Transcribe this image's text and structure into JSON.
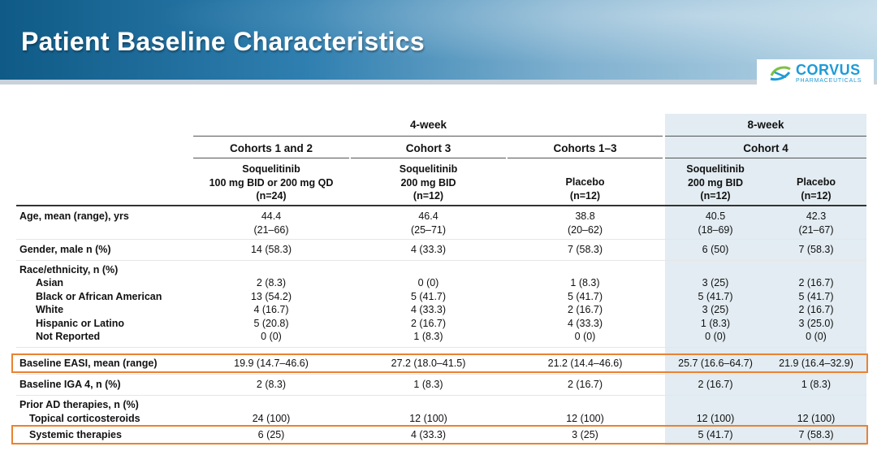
{
  "title": "Patient Baseline Characteristics",
  "logo": {
    "name": "CORVUS",
    "sub": "PHARMACEUTICALS"
  },
  "colors": {
    "accent": "#e98232",
    "header_blue": "#2f7fb0",
    "shade_8week": "#e2ecf2",
    "logo_blue": "#1e9bd7"
  },
  "table": {
    "group_4week": "4-week",
    "group_8week": "8-week",
    "cohorts": [
      "Cohorts 1 and 2",
      "Cohort 3",
      "Cohorts 1–3",
      "Cohort 4"
    ],
    "arms": [
      {
        "line1": "Soquelitinib",
        "line2": "100 mg BID or 200 mg QD",
        "line3": "(n=24)"
      },
      {
        "line1": "Soquelitinib",
        "line2": "200 mg BID",
        "line3": "(n=12)"
      },
      {
        "line1": "",
        "line2": "Placebo",
        "line3": "(n=12)"
      },
      {
        "line1": "Soquelitinib",
        "line2": "200 mg BID",
        "line3": "(n=12)"
      },
      {
        "line1": "",
        "line2": "Placebo",
        "line3": "(n=12)"
      }
    ],
    "rows": {
      "age": {
        "label": "Age, mean (range), yrs",
        "mean": [
          "44.4",
          "46.4",
          "38.8",
          "40.5",
          "42.3"
        ],
        "range": [
          "(21–66)",
          "(25–71)",
          "(20–62)",
          "(18–69)",
          "(21–67)"
        ]
      },
      "gender": {
        "label": "Gender, male n (%)",
        "values": [
          "14 (58.3)",
          "4 (33.3)",
          "7 (58.3)",
          "6 (50)",
          "7 (58.3)"
        ]
      },
      "race": {
        "label": "Race/ethnicity, n (%)",
        "subs": [
          {
            "label": "Asian",
            "values": [
              "2 (8.3)",
              "0 (0)",
              "1 (8.3)",
              "3 (25)",
              "2 (16.7)"
            ]
          },
          {
            "label": "Black or African American",
            "values": [
              "13 (54.2)",
              "5 (41.7)",
              "5 (41.7)",
              "5 (41.7)",
              "5 (41.7)"
            ]
          },
          {
            "label": "White",
            "values": [
              "4 (16.7)",
              "4 (33.3)",
              "2 (16.7)",
              "3 (25)",
              "2 (16.7)"
            ]
          },
          {
            "label": "Hispanic or Latino",
            "values": [
              "5 (20.8)",
              "2 (16.7)",
              "4 (33.3)",
              "1 (8.3)",
              "3 (25.0)"
            ]
          },
          {
            "label": "Not Reported",
            "values": [
              "0 (0)",
              "1 (8.3)",
              "0 (0)",
              "0 (0)",
              "0 (0)"
            ]
          }
        ]
      },
      "easi": {
        "label": "Baseline EASI, mean (range)",
        "values": [
          "19.9 (14.7–46.6)",
          "27.2 (18.0–41.5)",
          "21.2 (14.4–46.6)",
          "25.7 (16.6–64.7)",
          "21.9 (16.4–32.9)"
        ]
      },
      "iga": {
        "label": "Baseline IGA 4, n (%)",
        "values": [
          "2 (8.3)",
          "1 (8.3)",
          "2 (16.7)",
          "2 (16.7)",
          "1 (8.3)"
        ]
      },
      "prior": {
        "label": "Prior AD therapies, n (%)",
        "subs": [
          {
            "label": "Topical corticosteroids",
            "values": [
              "24 (100)",
              "12 (100)",
              "12 (100)",
              "12 (100)",
              "12 (100)"
            ]
          },
          {
            "label": "Systemic therapies",
            "values": [
              "6 (25)",
              "4 (33.3)",
              "3 (25)",
              "5 (41.7)",
              "7 (58.3)"
            ]
          }
        ]
      }
    }
  }
}
